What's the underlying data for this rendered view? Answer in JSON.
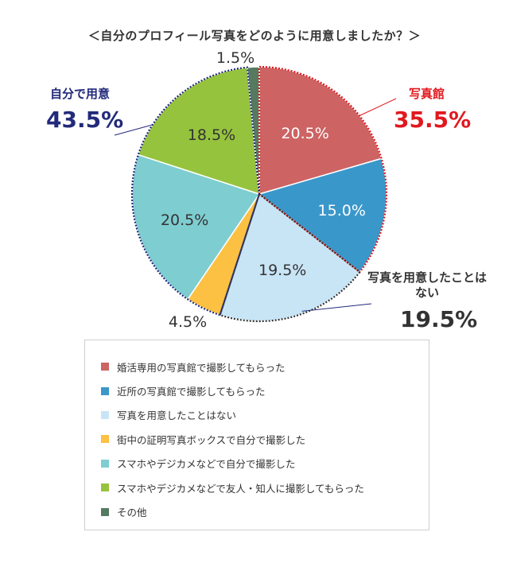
{
  "title": "＜自分のプロフィール写真をどのように用意しましたか？＞",
  "chart_data": {
    "type": "pie",
    "title": "＜自分のプロフィール写真をどのように用意しましたか？＞",
    "slices": [
      {
        "label": "婚活専用の写真館で撮影してもらった",
        "value": 20.5,
        "value_label": "20.5%",
        "color": "#cd6363"
      },
      {
        "label": "近所の写真館で撮影してもらった",
        "value": 15.0,
        "value_label": "15.0%",
        "color": "#3a97ca"
      },
      {
        "label": "写真を用意したことはない",
        "value": 19.5,
        "value_label": "19.5%",
        "color": "#c8e5f6"
      },
      {
        "label": "街中の証明写真ボックスで自分で撮影した",
        "value": 4.5,
        "value_label": "4.5%",
        "color": "#fcc043"
      },
      {
        "label": "スマホやデジカメなどで自分で撮影した",
        "value": 20.5,
        "value_label": "20.5%",
        "color": "#7ecdd0"
      },
      {
        "label": "スマホやデジカメなどで友人・知人に撮影してもらった",
        "value": 18.5,
        "value_label": "18.5%",
        "color": "#96c33e"
      },
      {
        "label": "その他",
        "value": 1.5,
        "value_label": "1.5%",
        "color": "#567a5f"
      }
    ],
    "groups": [
      {
        "name": "写真館",
        "value_label": "35.5%",
        "color": "#e0191f",
        "slices": [
          0,
          1
        ]
      },
      {
        "name": "写真を用意したことはない",
        "value_label": "19.5%",
        "color": "#333333",
        "slices": [
          2
        ]
      },
      {
        "name": "自分で用意",
        "value_label": "43.5%",
        "color": "#222a7b",
        "slices": [
          3,
          4,
          5
        ]
      }
    ],
    "legend_position": "bottom"
  }
}
